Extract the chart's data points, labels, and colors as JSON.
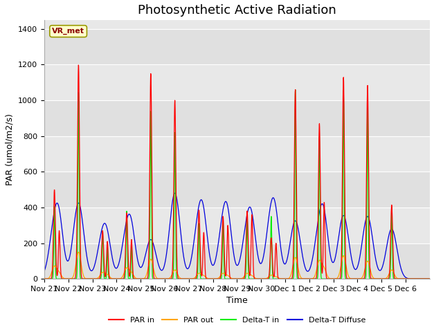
{
  "title": "Photosynthetic Active Radiation",
  "ylabel": "PAR (umol/m2/s)",
  "xlabel": "Time",
  "site_label": "VR_met",
  "ylim": [
    0,
    1450
  ],
  "legend_entries": [
    "PAR in",
    "PAR out",
    "Delta-T in",
    "Delta-T Diffuse"
  ],
  "colors": {
    "PAR_in": "#ff0000",
    "PAR_out": "#ffa500",
    "Delta_T_in": "#00ee00",
    "Delta_T_Diffuse": "#0000dd"
  },
  "tick_labels": [
    "Nov 21",
    "Nov 22",
    "Nov 23",
    "Nov 24",
    "Nov 25",
    "Nov 26",
    "Nov 27",
    "Nov 28",
    "Nov 29",
    "Nov 30",
    "Dec 1",
    "Dec 2",
    "Dec 3",
    "Dec 4",
    "Dec 5",
    "Dec 6"
  ],
  "fig_bg": "#ffffff",
  "plot_bg": "#e8e8e8",
  "title_fontsize": 13,
  "label_fontsize": 9,
  "day_peaks_PAR_in": [
    500,
    1200,
    270,
    370,
    1150,
    1000,
    385,
    350,
    380,
    230,
    1060,
    870,
    1130,
    1085,
    415,
    0
  ],
  "day_peaks_PAR_out": [
    70,
    150,
    35,
    60,
    110,
    50,
    30,
    30,
    30,
    20,
    120,
    100,
    130,
    100,
    50,
    0
  ],
  "day_peaks_DeltaT_in": [
    410,
    1050,
    270,
    380,
    940,
    820,
    310,
    320,
    365,
    350,
    1060,
    800,
    1060,
    1000,
    400,
    0
  ],
  "day_peaks_DeltaT_Diff": [
    260,
    425,
    220,
    230,
    220,
    480,
    300,
    260,
    245,
    330,
    325,
    245,
    355,
    350,
    280,
    0
  ],
  "day_peaks_PAR_in2": [
    270,
    0,
    210,
    220,
    0,
    0,
    260,
    300,
    360,
    200,
    0,
    430,
    0,
    0,
    0,
    0
  ],
  "day_peaks_PAR_out2": [
    30,
    0,
    20,
    30,
    0,
    0,
    15,
    15,
    15,
    10,
    0,
    50,
    0,
    0,
    0,
    0
  ],
  "day_peaks_DeltaT_in2": [
    0,
    0,
    180,
    220,
    0,
    0,
    0,
    0,
    0,
    0,
    0,
    0,
    0,
    0,
    0,
    0
  ],
  "day_peaks_DeltaT_Diff2": [
    220,
    0,
    130,
    180,
    0,
    0,
    200,
    230,
    210,
    180,
    0,
    230,
    0,
    0,
    0,
    0
  ]
}
